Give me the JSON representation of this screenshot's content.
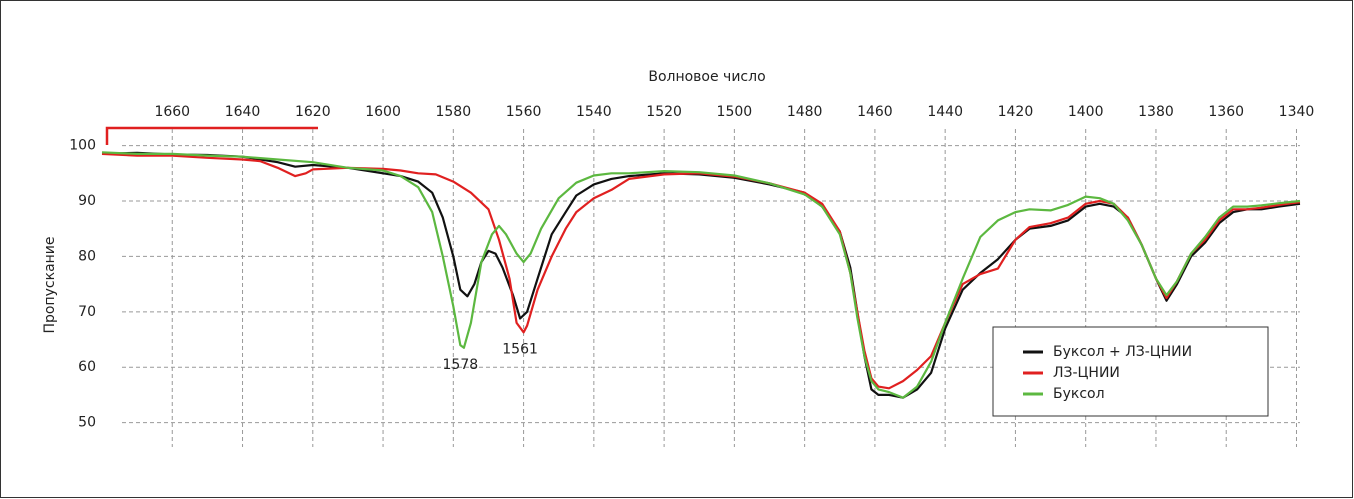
{
  "chart_data": {
    "type": "line",
    "x_label": "Волновое число",
    "y_label": "Пропускание",
    "xlim": [
      1680,
      1339
    ],
    "xticks": [
      1660,
      1640,
      1620,
      1600,
      1580,
      1560,
      1540,
      1520,
      1500,
      1480,
      1460,
      1440,
      1420,
      1400,
      1380,
      1360,
      1340
    ],
    "ylim": [
      46.5,
      103
    ],
    "yticks": [
      50,
      60,
      70,
      80,
      90,
      100
    ],
    "grid": true,
    "legend": "lower right",
    "annotations": [
      {
        "text": "1578",
        "x": 1578,
        "y": 63.5
      },
      {
        "text": "1561",
        "x": 1561,
        "y": 66.3
      }
    ],
    "series": [
      {
        "name": "Буксол + ЛЗ-ЦНИИ",
        "color": "#111111",
        "x": [
          1680,
          1670,
          1660,
          1650,
          1640,
          1630,
          1625,
          1620,
          1610,
          1600,
          1595,
          1590,
          1586,
          1583,
          1580,
          1578,
          1576,
          1574,
          1572,
          1570,
          1568,
          1566,
          1563,
          1561,
          1559,
          1556,
          1552,
          1548,
          1545,
          1540,
          1535,
          1530,
          1520,
          1510,
          1500,
          1490,
          1480,
          1475,
          1470,
          1467,
          1465,
          1463,
          1461,
          1459,
          1456,
          1452,
          1448,
          1444,
          1440,
          1435,
          1430,
          1425,
          1420,
          1416,
          1410,
          1405,
          1400,
          1396,
          1392,
          1388,
          1384,
          1380,
          1377,
          1374,
          1370,
          1366,
          1362,
          1358,
          1354,
          1350,
          1345,
          1339
        ],
        "values": [
          98.5,
          98.7,
          98.4,
          98.3,
          98,
          97,
          96.2,
          96.5,
          96,
          95,
          94.5,
          93.5,
          91.5,
          87,
          80,
          74,
          72.8,
          75,
          79,
          81,
          80.5,
          78,
          73,
          68.8,
          70,
          76,
          84,
          88,
          91,
          93,
          94,
          94.5,
          95,
          94.8,
          94.2,
          93,
          91.5,
          89,
          84.5,
          78,
          70,
          62,
          56,
          55,
          55,
          54.5,
          56,
          59,
          67,
          74,
          77,
          79.5,
          83,
          85,
          85.5,
          86.5,
          89,
          89.5,
          89,
          87,
          82,
          76,
          72,
          75,
          80,
          82.5,
          86,
          88,
          88.5,
          88.5,
          89,
          89.5
        ]
      },
      {
        "name": "ЛЗ-ЦНИИ",
        "color": "#e02020",
        "x": [
          1680,
          1670,
          1660,
          1650,
          1640,
          1635,
          1630,
          1625,
          1622,
          1620,
          1610,
          1600,
          1595,
          1590,
          1585,
          1580,
          1575,
          1570,
          1567,
          1564,
          1562,
          1560,
          1559,
          1556,
          1552,
          1548,
          1545,
          1540,
          1535,
          1530,
          1520,
          1510,
          1500,
          1490,
          1480,
          1475,
          1470,
          1467,
          1465,
          1463,
          1461,
          1459,
          1456,
          1452,
          1448,
          1444,
          1440,
          1435,
          1430,
          1425,
          1420,
          1416,
          1410,
          1405,
          1400,
          1396,
          1392,
          1388,
          1384,
          1380,
          1377,
          1374,
          1370,
          1366,
          1362,
          1358,
          1354,
          1350,
          1345,
          1339
        ],
        "values": [
          98.5,
          98.2,
          98.2,
          97.8,
          97.5,
          97.2,
          96,
          94.5,
          95,
          95.7,
          96,
          95.8,
          95.5,
          95,
          94.8,
          93.5,
          91.5,
          88.5,
          83,
          76,
          68,
          66.3,
          67.5,
          74,
          80,
          85,
          88,
          90.5,
          92,
          94,
          94.8,
          95,
          94.4,
          93.2,
          91.5,
          89.5,
          84.5,
          77,
          70,
          63,
          58,
          56.5,
          56.2,
          57.5,
          59.5,
          62,
          68,
          75,
          76.8,
          77.8,
          83,
          85.3,
          86,
          87,
          89.5,
          90,
          89.5,
          87,
          82,
          76,
          72.5,
          75.5,
          80.5,
          83,
          86.5,
          88.5,
          88.5,
          88.8,
          89.3,
          89.8
        ]
      },
      {
        "name": "Буксол",
        "color": "#5cb840",
        "x": [
          1680,
          1670,
          1660,
          1650,
          1640,
          1630,
          1620,
          1610,
          1600,
          1595,
          1590,
          1586,
          1583,
          1580,
          1578,
          1577,
          1575,
          1572,
          1569,
          1567,
          1565,
          1562,
          1560,
          1558,
          1555,
          1550,
          1545,
          1540,
          1535,
          1530,
          1520,
          1510,
          1500,
          1490,
          1480,
          1475,
          1470,
          1467,
          1465,
          1463,
          1461,
          1459,
          1456,
          1452,
          1448,
          1444,
          1440,
          1435,
          1430,
          1425,
          1420,
          1416,
          1410,
          1405,
          1400,
          1396,
          1392,
          1388,
          1384,
          1380,
          1377,
          1374,
          1370,
          1366,
          1362,
          1358,
          1354,
          1350,
          1345,
          1339
        ],
        "values": [
          98.8,
          98.5,
          98.5,
          98.2,
          98,
          97.5,
          97,
          96,
          95.5,
          94.5,
          92.5,
          88,
          80,
          71,
          64,
          63.5,
          68,
          79,
          84,
          85.5,
          84,
          80.5,
          79,
          80.5,
          85,
          90.5,
          93.3,
          94.6,
          95,
          95,
          95.4,
          95.2,
          94.6,
          93.2,
          91.2,
          89,
          84,
          77,
          69,
          62,
          57.5,
          56,
          55.5,
          54.5,
          56.5,
          61,
          68,
          76,
          83.5,
          86.5,
          88,
          88.5,
          88.3,
          89.3,
          90.8,
          90.5,
          89.5,
          86.5,
          82,
          76,
          73,
          75.5,
          80.5,
          83.5,
          87,
          89,
          89,
          89.2,
          89.6,
          90
        ]
      }
    ]
  }
}
